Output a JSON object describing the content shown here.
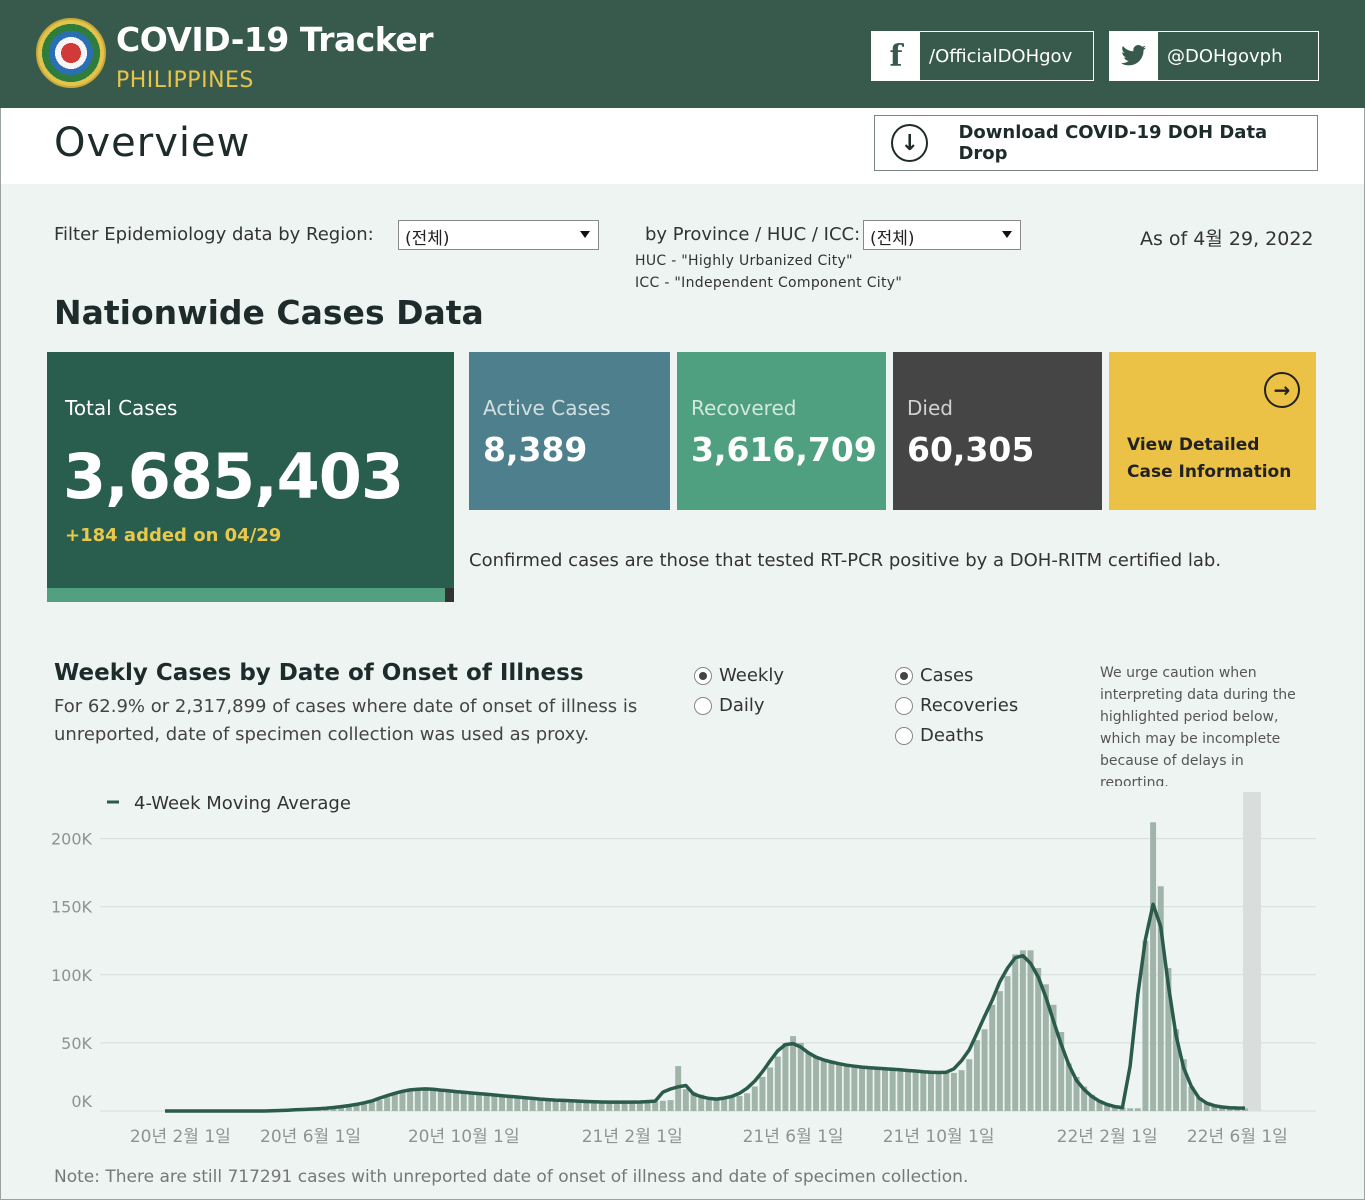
{
  "header": {
    "title": "COVID-19 Tracker",
    "subtitle": "PHILIPPINES",
    "facebook_label": "/OfficialDOHgov",
    "twitter_label": "@DOHgovph",
    "logo_icon": "doh-seal-icon"
  },
  "overview": {
    "title": "Overview",
    "download_label": "Download COVID-19 DOH Data Drop"
  },
  "filters": {
    "region_label": "Filter Epidemiology data by Region:",
    "region_value": "(전체)",
    "province_label": "by Province / HUC / ICC:",
    "province_value": "(전체)",
    "huc_note": "HUC - \"Highly Urbanized City\"",
    "icc_note": "ICC - \"Independent Component City\"",
    "as_of": "As of 4월 29, 2022"
  },
  "nationwide": {
    "title": "Nationwide Cases Data",
    "total_label": "Total Cases",
    "total_value": "3,685,403",
    "total_added": "+184 added on 04/29",
    "active_label": "Active Cases",
    "active_value": "8,389",
    "recovered_label": "Recovered",
    "recovered_value": "3,616,709",
    "died_label": "Died",
    "died_value": "60,305",
    "view_label": "View Detailed Case Information",
    "confirmed_note": "Confirmed cases are those that tested RT-PCR positive by a DOH-RITM certified lab.",
    "colors": {
      "total": "#295d4e",
      "active": "#4e7f8c",
      "recovered": "#4fa080",
      "died": "#454545",
      "view": "#ecc246"
    }
  },
  "weekly": {
    "title": "Weekly Cases by Date of Onset of Illness",
    "description": "For 62.9% or 2,317,899 of cases where date of onset of illness is unreported, date of specimen collection was used as proxy.",
    "radio_weekly": "Weekly",
    "radio_daily": "Daily",
    "radio_cases": "Cases",
    "radio_recoveries": "Recoveries",
    "radio_deaths": "Deaths",
    "caution": "We urge caution when interpreting data during the highlighted period below, which may be incomplete because of delays in reporting."
  },
  "chart_data": {
    "type": "bar",
    "legend": "4-Week Moving Average",
    "y_ticks": [
      "200K",
      "150K",
      "100K",
      "50K",
      "0K"
    ],
    "ylim": [
      0,
      210000
    ],
    "x_ticks": [
      "20년 2월 1일",
      "20년 6월 1일",
      "20년 10월 1일",
      "21년 2월 1일",
      "21년 6월 1일",
      "21년 10월 1일",
      "22년 2월 1일",
      "22년 6월 1일"
    ],
    "x_tick_week_index": [
      2,
      19,
      39,
      61,
      82,
      101,
      123,
      140
    ],
    "series": [
      {
        "name": "Weekly Cases",
        "values": [
          0,
          0,
          0,
          0,
          0,
          0,
          0,
          0,
          0,
          0,
          0,
          0,
          0,
          0,
          0,
          0,
          600,
          800,
          1000,
          1200,
          1500,
          1800,
          2200,
          2800,
          3500,
          4500,
          5000,
          6500,
          8000,
          10000,
          13000,
          14000,
          15000,
          16000,
          17000,
          16000,
          16000,
          15000,
          14500,
          14000,
          13500,
          13000,
          12500,
          12000,
          11500,
          11000,
          10500,
          10000,
          9500,
          9000,
          8500,
          8000,
          8000,
          7500,
          7500,
          7000,
          7000,
          6500,
          6500,
          6500,
          6500,
          6500,
          6500,
          6500,
          7000,
          7500,
          8000,
          33000,
          16000,
          14000,
          12000,
          8000,
          8000,
          9000,
          10000,
          11000,
          13000,
          18000,
          25000,
          32000,
          40000,
          50000,
          55000,
          50000,
          43000,
          40000,
          38000,
          37000,
          35000,
          34000,
          33000,
          32500,
          32000,
          31500,
          31000,
          31000,
          30500,
          30000,
          29500,
          29000,
          29000,
          28000,
          28000,
          28000,
          30000,
          38000,
          52000,
          60000,
          78000,
          88000,
          99000,
          115000,
          118000,
          118000,
          105000,
          93000,
          78000,
          58000,
          35000,
          25000,
          18000,
          12000,
          8000,
          5000,
          3500,
          2500,
          2000,
          2000,
          125000,
          212000,
          165000,
          105000,
          60000,
          38000,
          18000,
          10000,
          6000,
          4000,
          3000,
          2500,
          2200,
          2000
        ],
        "color": "#a0b4aa"
      },
      {
        "name": "4-Week Moving Average",
        "color": "#2b5b4b"
      }
    ],
    "highlight_period": "last weeks (incomplete reporting)"
  },
  "footnote": "Note: There are still 717291 cases with unreported date of onset of illness and date of specimen collection."
}
